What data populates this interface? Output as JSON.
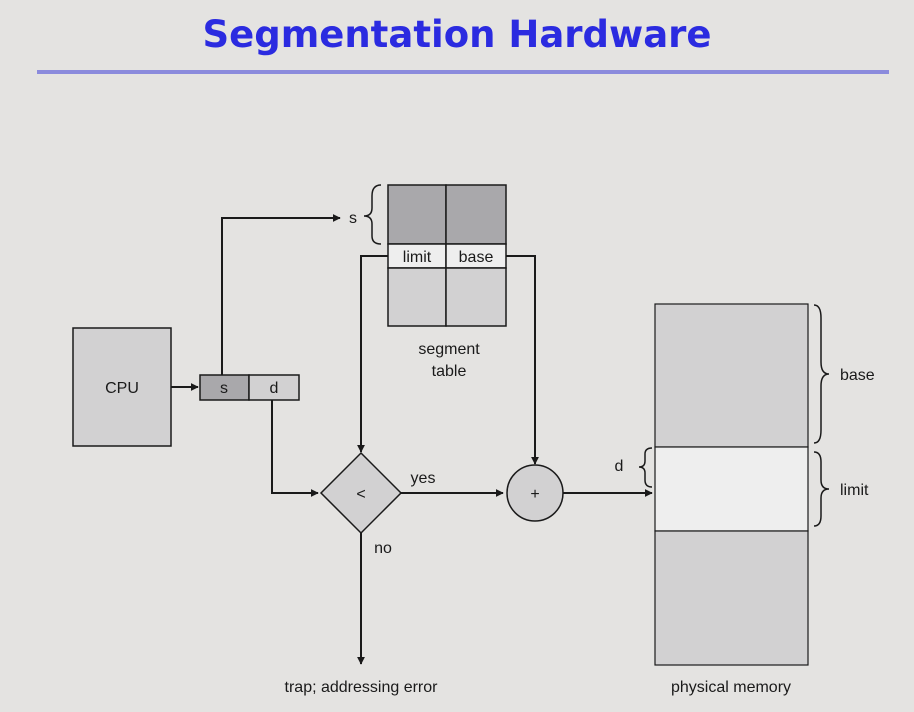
{
  "title": "Segmentation Hardware",
  "diagram": {
    "cpu_label": "CPU",
    "address": {
      "s": "s",
      "d": "d"
    },
    "segment_index_label": "s",
    "segment_table": {
      "limit_label": "limit",
      "base_label": "base",
      "caption_line1": "segment",
      "caption_line2": "table"
    },
    "comparator_symbol": "<",
    "yes_label": "yes",
    "no_label": "no",
    "adder_symbol": "+",
    "trap_label": "trap; addressing error",
    "offset_label": "d",
    "memory": {
      "base_label": "base",
      "limit_label": "limit",
      "caption": "physical memory"
    }
  },
  "colors": {
    "title": "#2b2be0",
    "rule": "#8b8bdc",
    "background": "#e4e3e1",
    "box_fill": "#d2d1d2",
    "dark_cell": "#a9a8ab",
    "light_cell": "#eeeeee",
    "stroke": "#1a1a1a"
  }
}
